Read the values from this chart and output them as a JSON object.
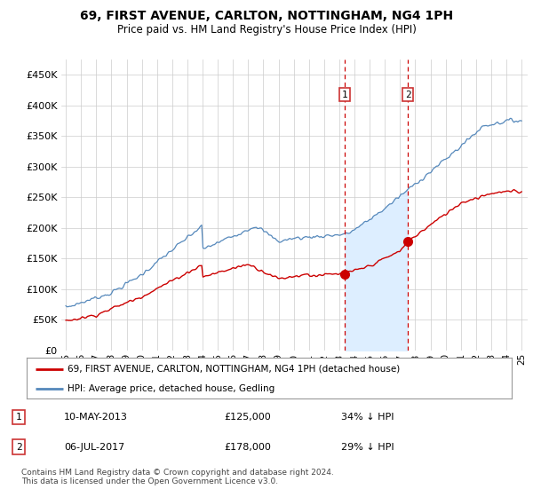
{
  "title": "69, FIRST AVENUE, CARLTON, NOTTINGHAM, NG4 1PH",
  "subtitle": "Price paid vs. HM Land Registry's House Price Index (HPI)",
  "ylabel_ticks": [
    "£0",
    "£50K",
    "£100K",
    "£150K",
    "£200K",
    "£250K",
    "£300K",
    "£350K",
    "£400K",
    "£450K"
  ],
  "ytick_values": [
    0,
    50000,
    100000,
    150000,
    200000,
    250000,
    300000,
    350000,
    400000,
    450000
  ],
  "ylim": [
    0,
    475000
  ],
  "hpi_color": "#5588bb",
  "hpi_fill_color": "#ddeeff",
  "price_color": "#cc0000",
  "sale1_price": 125000,
  "sale1_pct": "34%",
  "sale1_x": 2013.37,
  "sale1_date": "10-MAY-2013",
  "sale2_price": 178000,
  "sale2_pct": "29%",
  "sale2_x": 2017.51,
  "sale2_date": "06-JUL-2017",
  "legend_line1": "69, FIRST AVENUE, CARLTON, NOTTINGHAM, NG4 1PH (detached house)",
  "legend_line2": "HPI: Average price, detached house, Gedling",
  "footer": "Contains HM Land Registry data © Crown copyright and database right 2024.\nThis data is licensed under the Open Government Licence v3.0.",
  "bg_color": "#ffffff",
  "grid_color": "#cccccc",
  "vline1_color": "#cc0000",
  "vline2_color": "#cc0000"
}
